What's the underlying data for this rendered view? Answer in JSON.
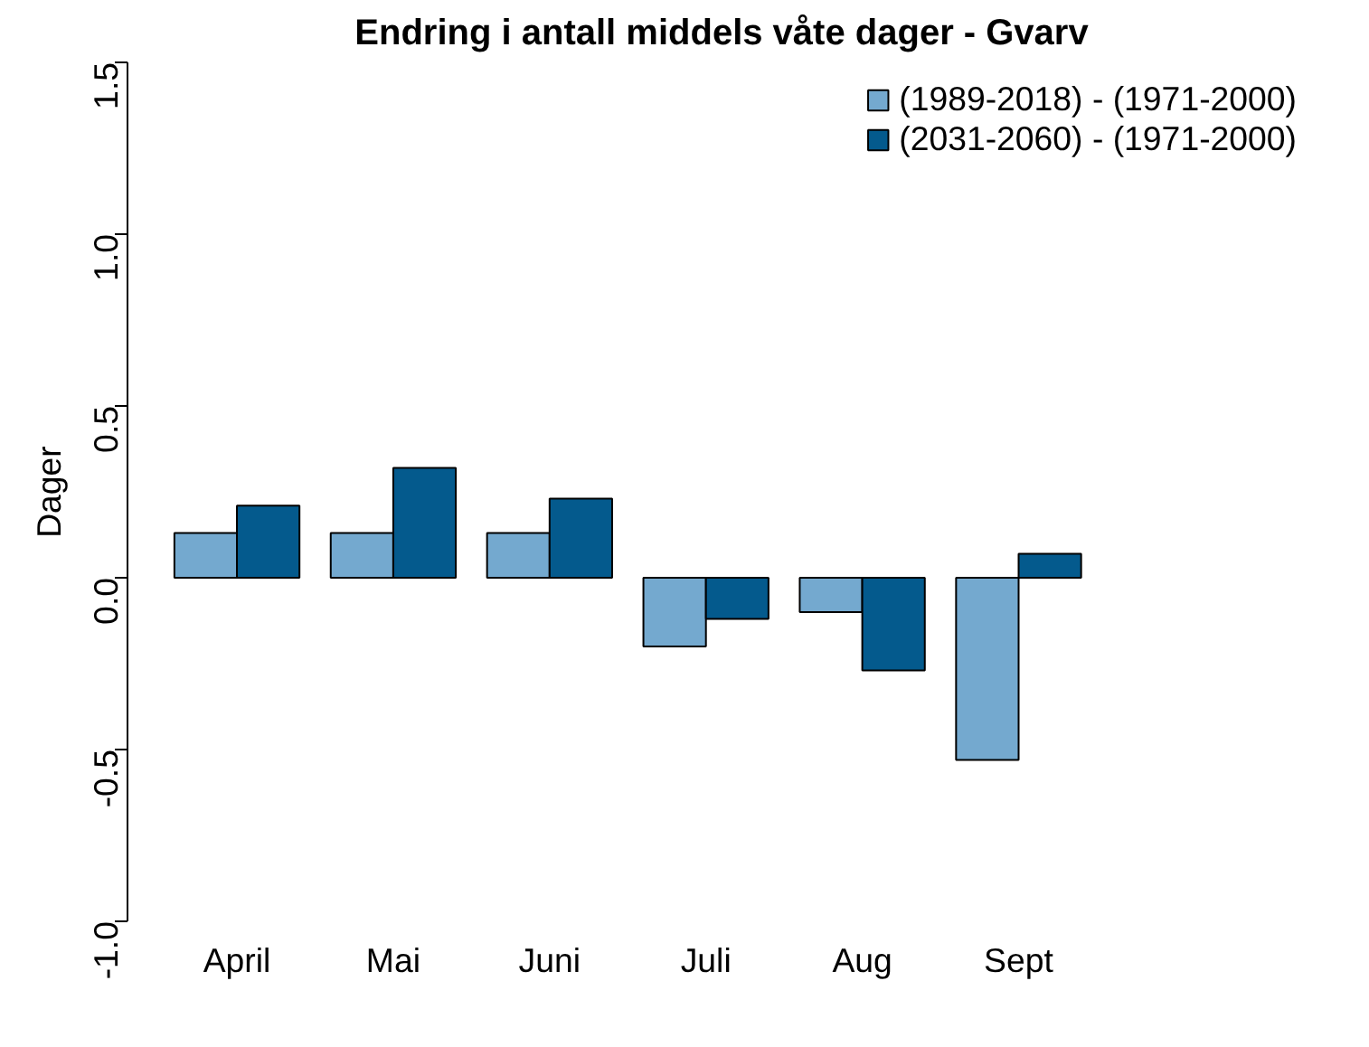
{
  "chart_data": {
    "type": "bar",
    "title": "Endring i antall middels våte dager - Gvarv",
    "ylabel": "Dager",
    "categories": [
      "April",
      "Mai",
      "Juni",
      "Juli",
      "Aug",
      "Sept"
    ],
    "series": [
      {
        "name": "(1989-2018) - (1971-2000)",
        "color": "#74a9cf",
        "values": [
          0.13,
          0.13,
          0.13,
          -0.2,
          -0.1,
          -0.53
        ]
      },
      {
        "name": "(2031-2060) - (1971-2000)",
        "color": "#045a8d",
        "values": [
          0.21,
          0.32,
          0.23,
          -0.12,
          -0.27,
          0.07
        ]
      }
    ],
    "ylim": [
      -1.0,
      1.5
    ],
    "yticks": [
      {
        "value": -1.0,
        "label": "-1.0"
      },
      {
        "value": -0.5,
        "label": "-0.5"
      },
      {
        "value": 0.0,
        "label": "0.0"
      },
      {
        "value": 0.5,
        "label": "0.5"
      },
      {
        "value": 1.0,
        "label": "1.0"
      },
      {
        "value": 1.5,
        "label": "1.5"
      }
    ],
    "grid": false,
    "legend": "top right"
  }
}
